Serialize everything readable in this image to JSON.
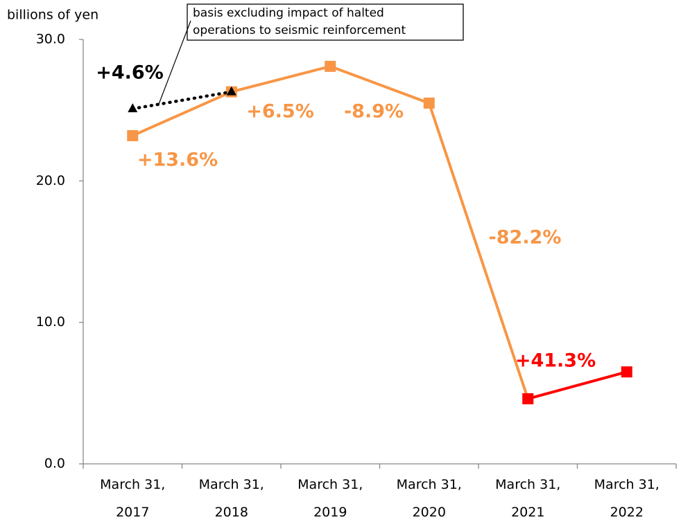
{
  "chart_data": {
    "type": "line",
    "y_axis_label": "billions of yen",
    "categories": [
      "March 31, 2017",
      "March 31, 2018",
      "March 31, 2019",
      "March 31, 2020",
      "March 31, 2021",
      "March 31, 2022"
    ],
    "ylim": [
      0,
      30
    ],
    "yticks": [
      {
        "value": 0,
        "label": "0.0"
      },
      {
        "value": 10,
        "label": "10.0"
      },
      {
        "value": 20,
        "label": "20.0"
      },
      {
        "value": 30,
        "label": "30.0"
      }
    ],
    "series": [
      {
        "color": "#f79646",
        "marker": "square",
        "style": "solid",
        "values": [
          23.2,
          26.3,
          28.1,
          25.5,
          4.6,
          null
        ]
      },
      {
        "color": "#ff0000",
        "marker": "square",
        "style": "solid",
        "values": [
          null,
          null,
          null,
          null,
          4.6,
          6.5
        ]
      },
      {
        "color": "#000000",
        "marker": "triangle",
        "style": "dotted",
        "values": [
          25.1,
          26.3,
          null,
          null,
          null,
          null
        ]
      }
    ],
    "annotations": [
      {
        "text": "+4.6%",
        "color": "#000000"
      },
      {
        "text": "+13.6%",
        "color": "#f79646"
      },
      {
        "text": "+6.5%",
        "color": "#f79646"
      },
      {
        "text": "-8.9%",
        "color": "#f79646"
      },
      {
        "text": "-82.2%",
        "color": "#f79646"
      },
      {
        "text": "+41.3%",
        "color": "#ff0000"
      }
    ],
    "callout": [
      "basis excluding impact of halted",
      "operations to seismic reinforcement"
    ]
  }
}
